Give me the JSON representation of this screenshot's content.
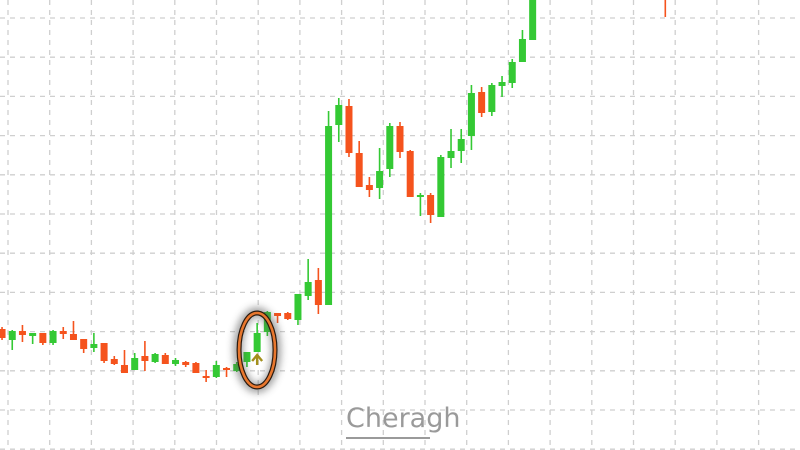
{
  "chart_data": {
    "type": "candlestick",
    "title": "",
    "xlabel": "",
    "ylabel": "",
    "grid": true,
    "grid_style": "dashed",
    "xlim": [
      -0.2,
      78.2
    ],
    "ylim": [
      1,
      46
    ],
    "colors": {
      "up": "#34c934",
      "down": "#f5531d",
      "grid": "#cfcfcf",
      "highlight": "#e8772e",
      "arrow": "#a38f1c"
    },
    "candle_fields": [
      "index",
      "open",
      "high",
      "low",
      "close"
    ],
    "candles": [
      [
        0,
        13.1,
        13.3,
        12.0,
        12.2
      ],
      [
        1,
        12.0,
        13.0,
        11.0,
        12.9
      ],
      [
        2,
        12.9,
        13.5,
        11.8,
        12.5
      ],
      [
        3,
        12.4,
        12.7,
        11.6,
        12.7
      ],
      [
        4,
        12.7,
        12.7,
        11.5,
        11.7
      ],
      [
        5,
        11.7,
        13.0,
        11.5,
        12.9
      ],
      [
        6,
        12.9,
        13.3,
        12.1,
        12.6
      ],
      [
        7,
        12.6,
        13.9,
        12.0,
        12.0
      ],
      [
        8,
        12.1,
        12.1,
        10.7,
        11.1
      ],
      [
        9,
        11.2,
        12.7,
        10.8,
        11.6
      ],
      [
        10,
        11.7,
        11.7,
        9.7,
        9.9
      ],
      [
        11,
        10.1,
        10.4,
        9.5,
        9.6
      ],
      [
        12,
        9.5,
        11.0,
        8.7,
        8.7
      ],
      [
        13,
        9.0,
        10.7,
        9.0,
        10.2
      ],
      [
        14,
        10.4,
        11.9,
        8.9,
        9.9
      ],
      [
        15,
        9.8,
        10.7,
        9.7,
        10.6
      ],
      [
        16,
        10.5,
        10.7,
        9.6,
        9.6
      ],
      [
        17,
        9.6,
        10.2,
        9.4,
        10.0
      ],
      [
        18,
        9.8,
        9.9,
        9.3,
        9.5
      ],
      [
        19,
        9.7,
        9.8,
        8.7,
        8.7
      ],
      [
        20,
        8.4,
        9.0,
        7.8,
        8.2
      ],
      [
        21,
        8.3,
        9.9,
        8.2,
        9.5
      ],
      [
        22,
        9.2,
        9.3,
        8.3,
        9.0
      ],
      [
        23,
        8.9,
        9.8,
        8.8,
        9.6
      ],
      [
        24,
        9.8,
        10.8,
        9.3,
        10.8
      ],
      [
        25,
        10.8,
        13.7,
        10.8,
        12.7
      ],
      [
        26,
        12.8,
        14.9,
        12.4,
        14.8
      ],
      [
        27,
        14.7,
        14.7,
        13.7,
        14.4
      ],
      [
        28,
        14.7,
        14.8,
        14.0,
        14.1
      ],
      [
        29,
        14.0,
        16.6,
        13.5,
        16.6
      ],
      [
        30,
        16.4,
        20.1,
        16.0,
        17.8
      ],
      [
        31,
        18.0,
        19.2,
        14.6,
        15.5
      ],
      [
        32,
        15.5,
        34.9,
        15.5,
        33.4
      ],
      [
        33,
        33.5,
        36.2,
        31.8,
        35.5
      ],
      [
        34,
        35.4,
        36.1,
        30.3,
        30.7
      ],
      [
        35,
        30.7,
        31.9,
        27.3,
        27.3
      ],
      [
        36,
        27.5,
        28.3,
        26.3,
        27.0
      ],
      [
        37,
        27.2,
        31.2,
        26.1,
        28.9
      ],
      [
        38,
        29.1,
        33.7,
        28.3,
        33.4
      ],
      [
        39,
        33.4,
        33.8,
        30.2,
        30.8
      ],
      [
        40,
        30.9,
        31.0,
        26.3,
        26.3
      ],
      [
        41,
        26.4,
        26.7,
        24.4,
        26.5
      ],
      [
        42,
        26.5,
        26.7,
        23.7,
        24.5
      ],
      [
        43,
        24.3,
        30.5,
        24.3,
        30.3
      ],
      [
        44,
        30.2,
        33.1,
        29.2,
        30.9
      ],
      [
        45,
        30.9,
        33.1,
        29.7,
        32.1
      ],
      [
        46,
        32.4,
        37.5,
        31.0,
        36.7
      ],
      [
        47,
        36.8,
        37.3,
        34.3,
        34.7
      ],
      [
        48,
        34.8,
        37.7,
        34.4,
        37.5
      ],
      [
        49,
        37.4,
        38.4,
        36.3,
        37.8
      ],
      [
        50,
        37.7,
        40.1,
        37.2,
        39.8
      ],
      [
        51,
        39.8,
        43.0,
        39.8,
        42.1
      ],
      [
        52,
        42.0,
        47.0,
        42.0,
        46.5
      ],
      [
        65,
        50.0,
        51.0,
        44.3,
        49.0
      ]
    ],
    "annotations": [
      {
        "type": "ellipse-highlight",
        "candles": [
          24,
          25
        ]
      },
      {
        "type": "up-arrow",
        "candle": 25
      }
    ]
  },
  "watermark": {
    "text": "Cheragh"
  }
}
